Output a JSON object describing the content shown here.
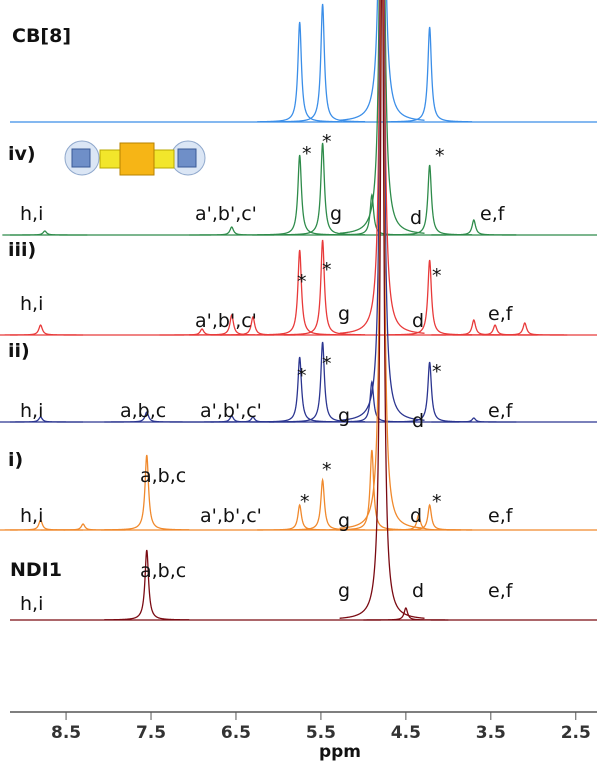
{
  "chart_data": {
    "type": "nmr",
    "xlabel": "ppm",
    "xlim": [
      9.16,
      2.25
    ],
    "xticks": [
      8.5,
      7.5,
      6.5,
      5.5,
      4.5,
      3.5,
      2.5
    ],
    "series": [
      {
        "name": "CB[8]",
        "color": "#3b8ee8",
        "x": [
          5.75,
          5.48,
          4.78,
          4.22
        ],
        "values": [
          100,
          118,
          700,
          95
        ],
        "labels": []
      },
      {
        "name": "iv)",
        "color": "#2e8b4a",
        "x": [
          8.75,
          6.55,
          5.75,
          5.48,
          4.9,
          4.78,
          4.22,
          3.7
        ],
        "values": [
          4,
          8,
          80,
          92,
          40,
          700,
          70,
          15
        ],
        "labels": [
          "h,i",
          "a',b',c'",
          "g",
          "d",
          "e,f",
          "*",
          "*",
          "*"
        ]
      },
      {
        "name": "iii)",
        "color": "#e83a3a",
        "x": [
          8.8,
          6.9,
          6.55,
          6.3,
          5.75,
          5.48,
          4.78,
          4.22,
          3.7,
          3.45,
          3.1
        ],
        "values": [
          10,
          6,
          20,
          18,
          85,
          95,
          700,
          75,
          15,
          10,
          12
        ],
        "labels": [
          "h,i",
          "a',b',c'",
          "g",
          "d",
          "e,f",
          "*",
          "*",
          "*"
        ]
      },
      {
        "name": "ii)",
        "color": "#2b3590",
        "x": [
          8.8,
          7.55,
          6.55,
          6.3,
          5.75,
          5.48,
          4.9,
          4.78,
          4.22,
          3.7
        ],
        "values": [
          5,
          10,
          6,
          5,
          65,
          80,
          40,
          700,
          60,
          4
        ],
        "labels": [
          "h,i",
          "a,b,c",
          "a',b',c'",
          "g",
          "d",
          "e,f",
          "*",
          "*",
          "*"
        ]
      },
      {
        "name": "i)",
        "color": "#f0892c",
        "x": [
          8.8,
          8.3,
          7.55,
          5.75,
          5.48,
          4.9,
          4.78,
          4.35,
          4.22
        ],
        "values": [
          10,
          6,
          75,
          25,
          50,
          80,
          700,
          15,
          25
        ],
        "labels": [
          "h,i",
          "a,b,c",
          "a',b',c'",
          "g",
          "d",
          "e,f",
          "*",
          "*",
          "*"
        ]
      },
      {
        "name": "NDI1",
        "color": "#7a0a12",
        "x": [
          7.55,
          4.78,
          4.5
        ],
        "values": [
          70,
          700,
          12
        ],
        "labels": [
          "h,i",
          "a,b,c",
          "g",
          "d",
          "e,f"
        ]
      }
    ]
  }
}
